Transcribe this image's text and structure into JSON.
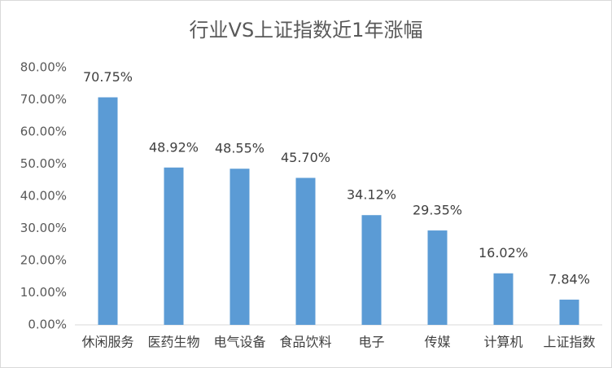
{
  "chart_data": {
    "type": "bar",
    "title": "行业VS上证指数近1年涨幅",
    "categories": [
      "休闲服务",
      "医药生物",
      "电气设备",
      "食品饮料",
      "电子",
      "传媒",
      "计算机",
      "上证指数"
    ],
    "values": [
      70.75,
      48.92,
      48.55,
      45.7,
      34.12,
      29.35,
      16.02,
      7.84
    ],
    "value_labels": [
      "70.75%",
      "48.92%",
      "48.55%",
      "45.70%",
      "34.12%",
      "29.35%",
      "16.02%",
      "7.84%"
    ],
    "color": "#5b9bd5",
    "ylim": [
      0,
      80
    ],
    "yticks": [
      {
        "value": 0,
        "label": "0.00%"
      },
      {
        "value": 10,
        "label": "10.00%"
      },
      {
        "value": 20,
        "label": "20.00%"
      },
      {
        "value": 30,
        "label": "30.00%"
      },
      {
        "value": 40,
        "label": "40.00%"
      },
      {
        "value": 50,
        "label": "50.00%"
      },
      {
        "value": 60,
        "label": "60.00%"
      },
      {
        "value": 70,
        "label": "70.00%"
      },
      {
        "value": 80,
        "label": "80.00%"
      }
    ],
    "grid": false
  }
}
